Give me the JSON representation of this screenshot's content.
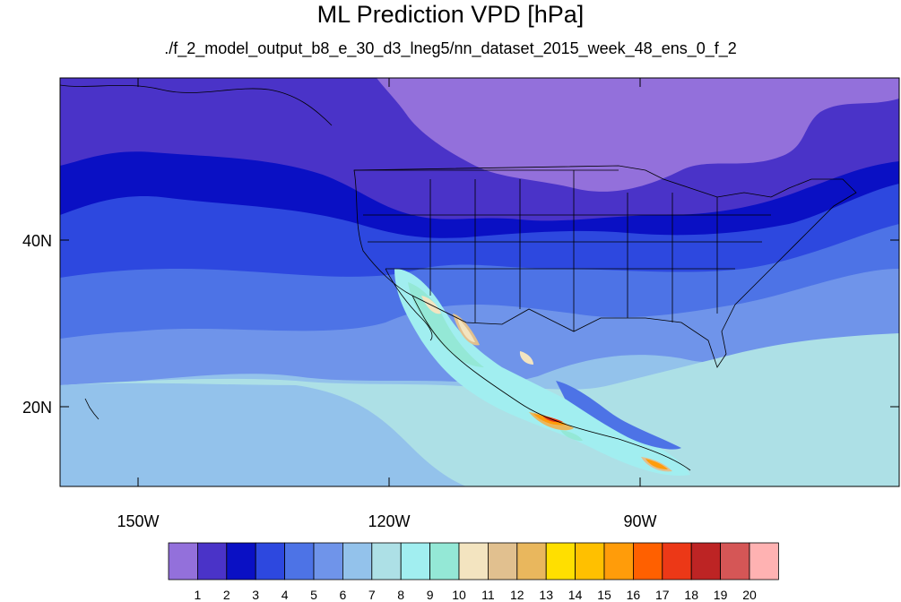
{
  "map": {
    "title": "ML Prediction VPD [hPa]",
    "subtitle": "./f_2_model_output_b8_e_30_d3_lneg5/nn_dataset_2015_week_48_ens_0_f_2",
    "lon_ticks": [
      "150W",
      "120W",
      "90W"
    ],
    "lat_ticks": [
      "40N",
      "20N"
    ],
    "colorbar": {
      "labels": [
        "1",
        "2",
        "3",
        "4",
        "5",
        "6",
        "7",
        "8",
        "9",
        "10",
        "11",
        "12",
        "13",
        "14",
        "15",
        "16",
        "17",
        "18",
        "19",
        "20"
      ],
      "colors": [
        "#9370db",
        "#4a33c8",
        "#0a10c4",
        "#2d48df",
        "#4d73e6",
        "#6f94ea",
        "#93c2eb",
        "#ade0e6",
        "#a1eef0",
        "#94e8d6",
        "#f3e4c0",
        "#e1c08f",
        "#e9b75d",
        "#ffdf00",
        "#ffc000",
        "#ff9c0a",
        "#ff6000",
        "#ec3817",
        "#bd2424",
        "#d55656",
        "#ffb2b2"
      ]
    },
    "palette": {
      "land_border": "#000000",
      "frame": "#000000"
    }
  }
}
